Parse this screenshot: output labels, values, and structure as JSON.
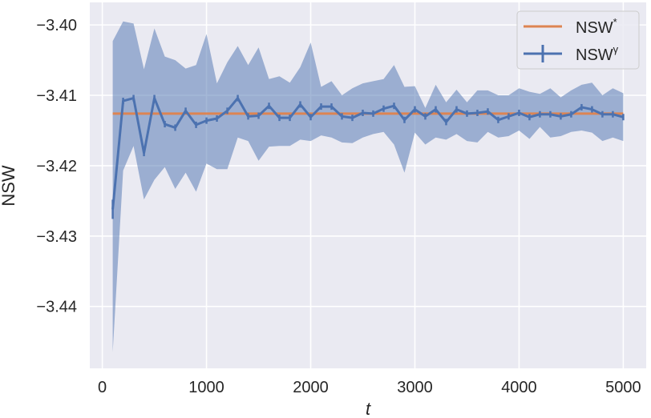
{
  "chart_data": {
    "type": "line",
    "title": "",
    "xlabel": "t",
    "ylabel": "NSW",
    "xlim": [
      -120,
      5220
    ],
    "ylim": [
      -3.4488,
      -3.3968
    ],
    "x_ticks": [
      0,
      1000,
      2000,
      3000,
      4000,
      5000
    ],
    "x_tick_labels": [
      "0",
      "1000",
      "2000",
      "3000",
      "4000",
      "5000"
    ],
    "y_ticks": [
      -3.4,
      -3.41,
      -3.42,
      -3.43,
      -3.44
    ],
    "y_tick_labels": [
      "−3.40",
      "−3.41",
      "−3.42",
      "−3.43",
      "−3.44"
    ],
    "grid": true,
    "legend_position": "upper right",
    "legend": [
      {
        "label": "NSW",
        "superscript": "*",
        "color": "#dd8452",
        "marker": "line"
      },
      {
        "label": "NSW",
        "superscript": "γ",
        "color": "#4c72b0",
        "marker": "errorbar"
      }
    ],
    "reference_line": {
      "name": "NSW*",
      "value": -3.4126,
      "x_range": [
        100,
        5000
      ],
      "color": "#dd8452"
    },
    "series": [
      {
        "name": "NSWγ",
        "color": "#4c72b0",
        "x": [
          100,
          200,
          300,
          400,
          500,
          600,
          700,
          800,
          900,
          1000,
          1100,
          1200,
          1300,
          1400,
          1500,
          1600,
          1700,
          1800,
          1900,
          2000,
          2100,
          2200,
          2300,
          2400,
          2500,
          2600,
          2700,
          2800,
          2900,
          3000,
          3100,
          3200,
          3300,
          3400,
          3500,
          3600,
          3700,
          3800,
          3900,
          4000,
          4100,
          4200,
          4300,
          4400,
          4500,
          4600,
          4700,
          4800,
          4900,
          5000
        ],
        "mean": [
          -3.4262,
          -3.4108,
          -3.4104,
          -3.4182,
          -3.4104,
          -3.4141,
          -3.4146,
          -3.4122,
          -3.4142,
          -3.4136,
          -3.4133,
          -3.4122,
          -3.4104,
          -3.413,
          -3.4129,
          -3.4115,
          -3.4132,
          -3.4132,
          -3.4113,
          -3.4131,
          -3.4116,
          -3.4116,
          -3.413,
          -3.4132,
          -3.4125,
          -3.4126,
          -3.4119,
          -3.4115,
          -3.4135,
          -3.412,
          -3.413,
          -3.412,
          -3.4138,
          -3.412,
          -3.4126,
          -3.4125,
          -3.4123,
          -3.4135,
          -3.413,
          -3.4125,
          -3.4131,
          -3.4127,
          -3.4127,
          -3.413,
          -3.4127,
          -3.4117,
          -3.412,
          -3.4127,
          -3.4127,
          -3.4131
        ],
        "upper": [
          -3.4023,
          -3.3995,
          -3.3998,
          -3.4063,
          -3.4005,
          -3.4045,
          -3.405,
          -3.4062,
          -3.4057,
          -3.4013,
          -3.4083,
          -3.4053,
          -3.403,
          -3.4057,
          -3.4032,
          -3.4077,
          -3.4073,
          -3.4082,
          -3.406,
          -3.4025,
          -3.4088,
          -3.408,
          -3.41,
          -3.409,
          -3.4083,
          -3.408,
          -3.4077,
          -3.4057,
          -3.4088,
          -3.4087,
          -3.4118,
          -3.4085,
          -3.411,
          -3.4092,
          -3.411,
          -3.4093,
          -3.4093,
          -3.41,
          -3.41,
          -3.409,
          -3.4095,
          -3.4098,
          -3.409,
          -3.4103,
          -3.4093,
          -3.4085,
          -3.4082,
          -3.41,
          -3.409,
          -3.4097
        ],
        "lower": [
          -3.4465,
          -3.4207,
          -3.4172,
          -3.4248,
          -3.422,
          -3.4202,
          -3.4233,
          -3.421,
          -3.4237,
          -3.4197,
          -3.4205,
          -3.4205,
          -3.416,
          -3.4165,
          -3.4193,
          -3.4173,
          -3.4172,
          -3.4172,
          -3.4163,
          -3.4165,
          -3.4157,
          -3.416,
          -3.4167,
          -3.4168,
          -3.416,
          -3.4155,
          -3.4152,
          -3.417,
          -3.421,
          -3.4153,
          -3.417,
          -3.416,
          -3.4163,
          -3.4155,
          -3.4165,
          -3.4167,
          -3.4152,
          -3.416,
          -3.4158,
          -3.415,
          -3.4162,
          -3.4145,
          -3.416,
          -3.4158,
          -3.4152,
          -3.415,
          -3.4153,
          -3.4165,
          -3.416,
          -3.4165
        ]
      }
    ]
  },
  "colors": {
    "plot_background": "#eaeaf2",
    "grid": "#ffffff",
    "band_fill": "#4c72b0",
    "mean_line": "#4c72b0",
    "reference_line": "#dd8452",
    "legend_border": "#cccccc"
  }
}
